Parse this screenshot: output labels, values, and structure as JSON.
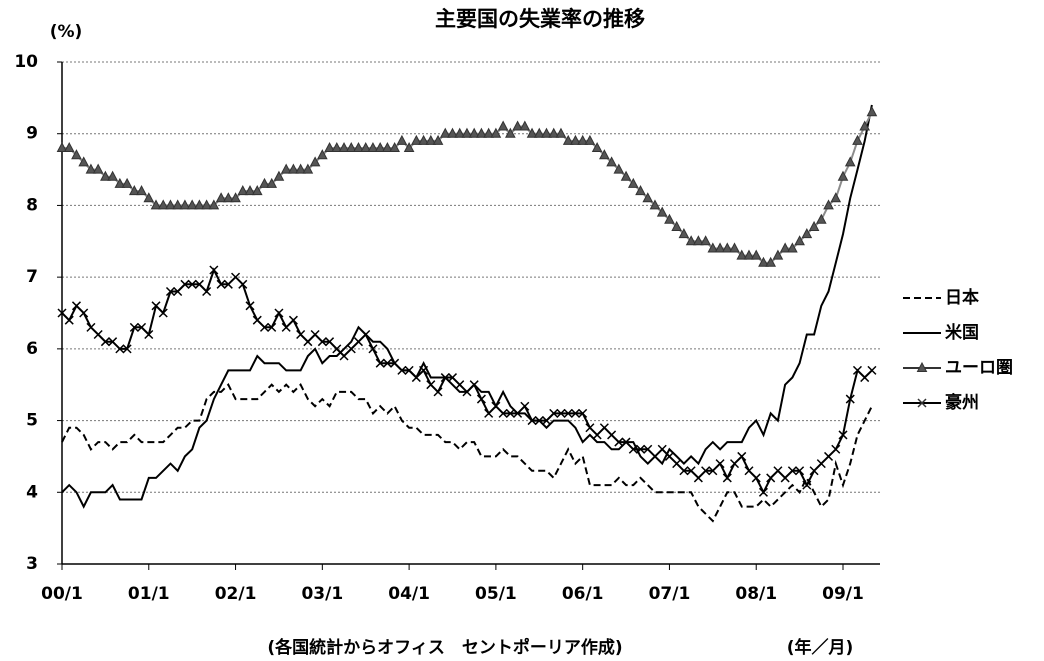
{
  "chart_data": {
    "type": "line",
    "title": "主要国の失業率の推移",
    "y_unit": "(%)",
    "x_unit": "(年／月)",
    "source": "(各国統計からオフィス　セントポーリア作成)",
    "categories": [
      "00/1",
      null,
      null,
      null,
      null,
      null,
      null,
      null,
      null,
      null,
      null,
      null,
      "01/1",
      null,
      null,
      null,
      null,
      null,
      null,
      null,
      null,
      null,
      null,
      null,
      "02/1",
      null,
      null,
      null,
      null,
      null,
      null,
      null,
      null,
      null,
      null,
      null,
      "03/1",
      null,
      null,
      null,
      null,
      null,
      null,
      null,
      null,
      null,
      null,
      null,
      "04/1",
      null,
      null,
      null,
      null,
      null,
      null,
      null,
      null,
      null,
      null,
      null,
      "05/1",
      null,
      null,
      null,
      null,
      null,
      null,
      null,
      null,
      null,
      null,
      null,
      "06/1",
      null,
      null,
      null,
      null,
      null,
      null,
      null,
      null,
      null,
      null,
      null,
      "07/1",
      null,
      null,
      null,
      null,
      null,
      null,
      null,
      null,
      null,
      null,
      null,
      "08/1",
      null,
      null,
      null,
      null,
      null,
      null,
      null,
      null,
      null,
      null,
      null,
      "09/1",
      null,
      null,
      null,
      null
    ],
    "ylim": [
      3,
      10
    ],
    "yticks": [
      3,
      4,
      5,
      6,
      7,
      8,
      9,
      10
    ],
    "grid": true,
    "legend": "right",
    "series": [
      {
        "name": "日本",
        "color": "#000000",
        "dash": true,
        "marker": "none",
        "values": [
          4.7,
          4.9,
          4.9,
          4.8,
          4.6,
          4.7,
          4.7,
          4.6,
          4.7,
          4.7,
          4.8,
          4.7,
          4.7,
          4.7,
          4.7,
          4.8,
          4.9,
          4.9,
          5.0,
          5.0,
          5.3,
          5.4,
          5.4,
          5.5,
          5.3,
          5.3,
          5.3,
          5.3,
          5.4,
          5.5,
          5.4,
          5.5,
          5.4,
          5.5,
          5.3,
          5.2,
          5.3,
          5.2,
          5.4,
          5.4,
          5.4,
          5.3,
          5.3,
          5.1,
          5.2,
          5.1,
          5.2,
          5.0,
          4.9,
          4.9,
          4.8,
          4.8,
          4.8,
          4.7,
          4.7,
          4.6,
          4.7,
          4.7,
          4.5,
          4.5,
          4.5,
          4.6,
          4.5,
          4.5,
          4.4,
          4.3,
          4.3,
          4.3,
          4.2,
          4.4,
          4.6,
          4.4,
          4.5,
          4.1,
          4.1,
          4.1,
          4.1,
          4.2,
          4.1,
          4.1,
          4.2,
          4.1,
          4.0,
          4.0,
          4.0,
          4.0,
          4.0,
          4.0,
          3.8,
          3.7,
          3.6,
          3.8,
          4.0,
          4.0,
          3.8,
          3.8,
          3.8,
          3.9,
          3.8,
          3.9,
          4.0,
          4.1,
          4.0,
          4.2,
          4.0,
          3.8,
          3.9,
          4.4,
          4.1,
          4.4,
          4.8,
          5.0,
          5.2
        ]
      },
      {
        "name": "米国",
        "color": "#000000",
        "dash": false,
        "marker": "none",
        "values": [
          4.0,
          4.1,
          4.0,
          3.8,
          4.0,
          4.0,
          4.0,
          4.1,
          3.9,
          3.9,
          3.9,
          3.9,
          4.2,
          4.2,
          4.3,
          4.4,
          4.3,
          4.5,
          4.6,
          4.9,
          5.0,
          5.3,
          5.5,
          5.7,
          5.7,
          5.7,
          5.7,
          5.9,
          5.8,
          5.8,
          5.8,
          5.7,
          5.7,
          5.7,
          5.9,
          6.0,
          5.8,
          5.9,
          5.9,
          6.0,
          6.1,
          6.3,
          6.2,
          6.1,
          6.1,
          6.0,
          5.8,
          5.7,
          5.7,
          5.6,
          5.8,
          5.6,
          5.6,
          5.6,
          5.5,
          5.4,
          5.4,
          5.5,
          5.4,
          5.4,
          5.2,
          5.4,
          5.2,
          5.1,
          5.1,
          5.0,
          5.0,
          4.9,
          5.0,
          5.0,
          5.0,
          4.9,
          4.7,
          4.8,
          4.7,
          4.7,
          4.6,
          4.6,
          4.7,
          4.7,
          4.5,
          4.4,
          4.5,
          4.4,
          4.6,
          4.5,
          4.4,
          4.5,
          4.4,
          4.6,
          4.7,
          4.6,
          4.7,
          4.7,
          4.7,
          4.9,
          5.0,
          4.8,
          5.1,
          5.0,
          5.5,
          5.6,
          5.8,
          6.2,
          6.2,
          6.6,
          6.8,
          7.2,
          7.6,
          8.1,
          8.5,
          8.9,
          9.4
        ]
      },
      {
        "name": "ユーロ圏",
        "color": "#8c8c8c",
        "dash": false,
        "marker": "triangle",
        "values": [
          8.8,
          8.8,
          8.7,
          8.6,
          8.5,
          8.5,
          8.4,
          8.4,
          8.3,
          8.3,
          8.2,
          8.2,
          8.1,
          8.0,
          8.0,
          8.0,
          8.0,
          8.0,
          8.0,
          8.0,
          8.0,
          8.0,
          8.1,
          8.1,
          8.1,
          8.2,
          8.2,
          8.2,
          8.3,
          8.3,
          8.4,
          8.5,
          8.5,
          8.5,
          8.5,
          8.6,
          8.7,
          8.8,
          8.8,
          8.8,
          8.8,
          8.8,
          8.8,
          8.8,
          8.8,
          8.8,
          8.8,
          8.9,
          8.8,
          8.9,
          8.9,
          8.9,
          8.9,
          9.0,
          9.0,
          9.0,
          9.0,
          9.0,
          9.0,
          9.0,
          9.0,
          9.1,
          9.0,
          9.1,
          9.1,
          9.0,
          9.0,
          9.0,
          9.0,
          9.0,
          8.9,
          8.9,
          8.9,
          8.9,
          8.8,
          8.7,
          8.6,
          8.5,
          8.4,
          8.3,
          8.2,
          8.1,
          8.0,
          7.9,
          7.8,
          7.7,
          7.6,
          7.5,
          7.5,
          7.5,
          7.4,
          7.4,
          7.4,
          7.4,
          7.3,
          7.3,
          7.3,
          7.2,
          7.2,
          7.3,
          7.4,
          7.4,
          7.5,
          7.6,
          7.7,
          7.8,
          8.0,
          8.1,
          8.4,
          8.6,
          8.9,
          9.1,
          9.3
        ]
      },
      {
        "name": "豪州",
        "color": "#000000",
        "dash": false,
        "marker": "x",
        "values": [
          6.5,
          6.4,
          6.6,
          6.5,
          6.3,
          6.2,
          6.1,
          6.1,
          6.0,
          6.0,
          6.3,
          6.3,
          6.2,
          6.6,
          6.5,
          6.8,
          6.8,
          6.9,
          6.9,
          6.9,
          6.8,
          7.1,
          6.9,
          6.9,
          7.0,
          6.9,
          6.6,
          6.4,
          6.3,
          6.3,
          6.5,
          6.3,
          6.4,
          6.2,
          6.1,
          6.2,
          6.1,
          6.1,
          6.0,
          5.9,
          6.0,
          6.1,
          6.2,
          6.0,
          5.8,
          5.8,
          5.8,
          5.7,
          5.7,
          5.6,
          5.7,
          5.5,
          5.4,
          5.6,
          5.6,
          5.5,
          5.4,
          5.5,
          5.3,
          5.1,
          5.2,
          5.1,
          5.1,
          5.1,
          5.2,
          5.0,
          5.0,
          5.0,
          5.1,
          5.1,
          5.1,
          5.1,
          5.1,
          4.9,
          4.8,
          4.9,
          4.8,
          4.7,
          4.7,
          4.6,
          4.6,
          4.6,
          4.5,
          4.6,
          4.5,
          4.4,
          4.3,
          4.3,
          4.2,
          4.3,
          4.3,
          4.4,
          4.2,
          4.4,
          4.5,
          4.3,
          4.2,
          4.0,
          4.2,
          4.3,
          4.2,
          4.3,
          4.3,
          4.1,
          4.3,
          4.4,
          4.5,
          4.6,
          4.8,
          5.3,
          5.7,
          5.6,
          5.7
        ]
      }
    ]
  }
}
